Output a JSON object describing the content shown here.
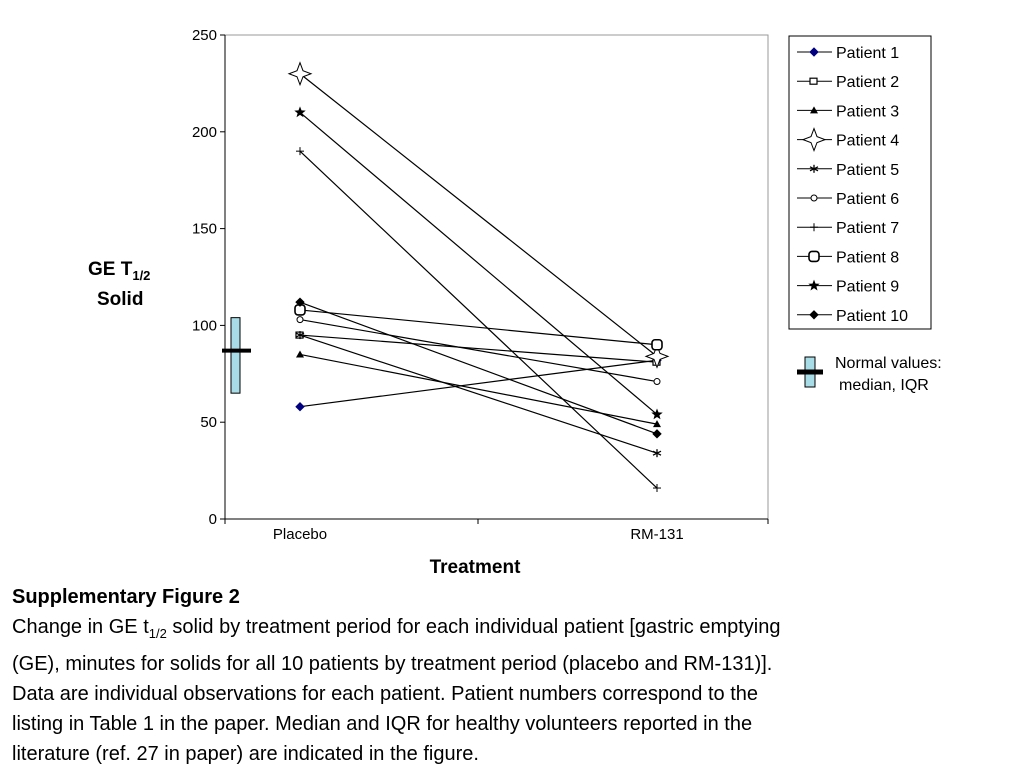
{
  "chart_data": {
    "type": "line",
    "categories": [
      "Placebo",
      "RM-131"
    ],
    "xlabel": "Treatment",
    "ylabel_main": "GE T",
    "ylabel_sub": "1/2",
    "ylabel_line2": "Solid",
    "ylim": [
      0,
      250
    ],
    "yticks": [
      "0",
      "50",
      "100",
      "150",
      "200",
      "250"
    ],
    "grid": false,
    "legend_position": "right",
    "series": [
      {
        "name": "Patient 1",
        "marker": "diamond",
        "color": "#000080",
        "values": [
          58,
          82
        ]
      },
      {
        "name": "Patient 2",
        "marker": "square",
        "color": "#000000",
        "values": [
          95,
          81
        ]
      },
      {
        "name": "Patient 3",
        "marker": "triangle",
        "color": "#000000",
        "values": [
          85,
          49
        ]
      },
      {
        "name": "Patient 4",
        "marker": "star4",
        "color": "#000000",
        "values": [
          230,
          84
        ]
      },
      {
        "name": "Patient 5",
        "marker": "asterisk",
        "color": "#000000",
        "values": [
          95,
          34
        ]
      },
      {
        "name": "Patient 6",
        "marker": "circle",
        "color": "#000000",
        "values": [
          103,
          71
        ]
      },
      {
        "name": "Patient 7",
        "marker": "plus",
        "color": "#000000",
        "values": [
          190,
          16
        ]
      },
      {
        "name": "Patient 8",
        "marker": "roundsquare",
        "color": "#000000",
        "values": [
          108,
          90
        ]
      },
      {
        "name": "Patient 9",
        "marker": "star5",
        "color": "#000000",
        "values": [
          210,
          54
        ]
      },
      {
        "name": "Patient 10",
        "marker": "smalldiamond",
        "color": "#000000",
        "values": [
          112,
          44
        ]
      }
    ],
    "normal_values": {
      "label_line1": "Normal values:",
      "label_line2": "median, IQR",
      "median": 87,
      "q1": 65,
      "q3": 104,
      "box_color": "#a8dce6"
    }
  },
  "caption": {
    "title": "Supplementary Figure 2",
    "line1_pre": "Change in GE t",
    "line1_sub": "1/2",
    "line1_post": " solid by treatment period for each individual patient [gastric emptying",
    "line2": "(GE), minutes for solids for all 10 patients by treatment period (placebo and RM-131)].",
    "line3": "Data are individual observations for each patient. Patient numbers correspond to the",
    "line4": "listing in Table 1 in the paper. Median and IQR for healthy volunteers reported in the",
    "line5": "literature (ref. 27 in paper) are indicated in the figure."
  }
}
